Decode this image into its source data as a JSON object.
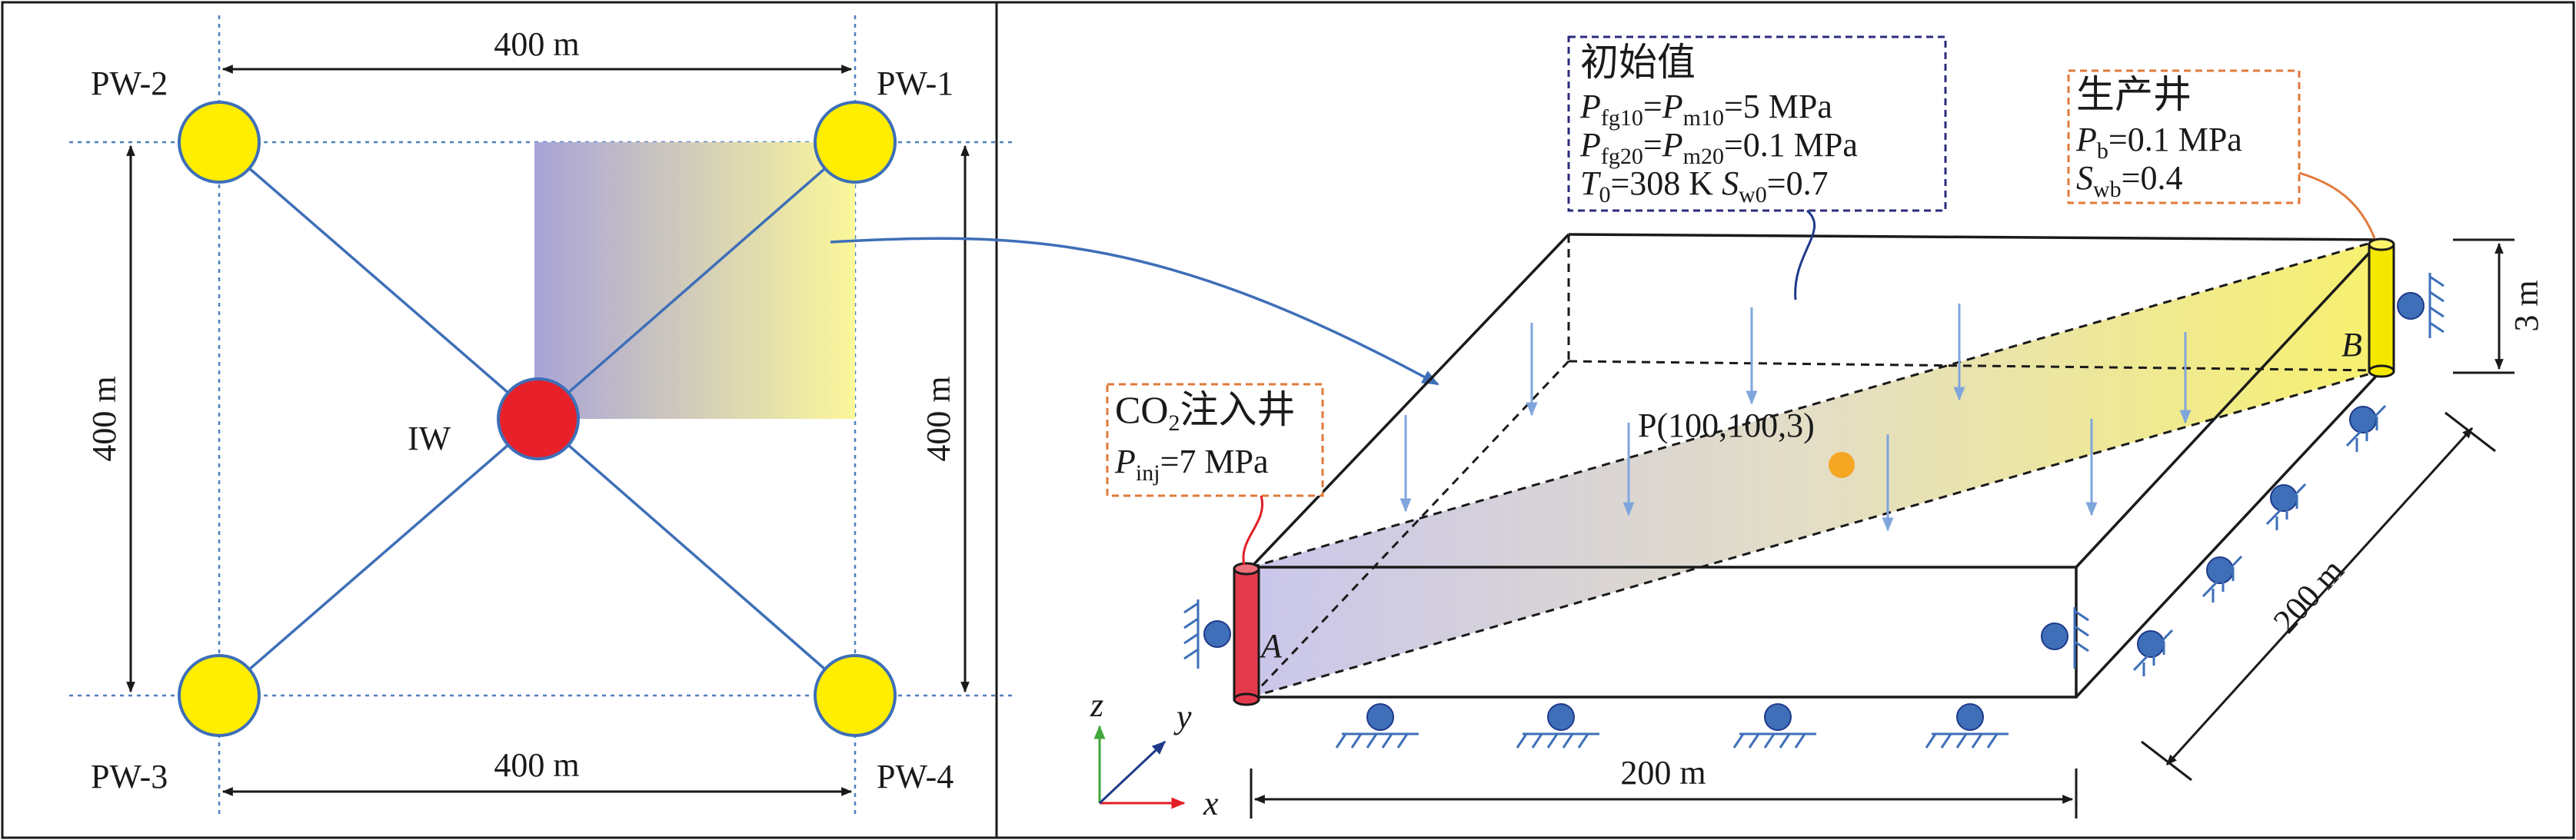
{
  "left_plan": {
    "wells": {
      "pw1": "PW-1",
      "pw2": "PW-2",
      "pw3": "PW-3",
      "pw4": "PW-4",
      "iw": "IW"
    },
    "dimensions": {
      "top": "400 m",
      "bottom": "400 m",
      "left": "400 m",
      "right": "400 m"
    }
  },
  "model_3d": {
    "initial_box": {
      "title": "初始值",
      "line1": {
        "p1": "P",
        "s1": "fg10",
        "eq1": "=",
        "p2": "P",
        "s2": "m10",
        "tail": "=5 MPa"
      },
      "line2": {
        "p1": "P",
        "s1": "fg20",
        "eq1": "=",
        "p2": "P",
        "s2": "m20",
        "tail": "=0.1 MPa"
      },
      "line3": {
        "t": "T",
        "ts": "0",
        "tv": "=308 K ",
        "s": "S",
        "ss": "w0",
        "sv": "=0.7"
      }
    },
    "production_box": {
      "title": "生产井",
      "line1": {
        "p": "P",
        "s": "b",
        "v": "=0.1 MPa"
      },
      "line2": {
        "p": "S",
        "s": "wb",
        "v": "=0.4"
      }
    },
    "injection_box": {
      "title_main": "CO",
      "title_sub": "2",
      "title_tail": "注入井",
      "line1": {
        "p": "P",
        "s": "inj",
        "v": "=7 MPa"
      }
    },
    "point_label": "P(100,100,3)",
    "label_a": "A",
    "label_b": "B",
    "dim_height": "3 m",
    "dim_width": "200 m",
    "dim_depth": "200 m",
    "axes": {
      "x": "x",
      "y": "y",
      "z": "z"
    }
  },
  "colors": {
    "well_yellow": "#ffee00",
    "injector_red": "#e8202a",
    "line_blue": "#3e6fb8",
    "dash_blue": "#4f7fc0",
    "box_dash_navy": "#2b2c7c",
    "box_dash_orange": "#e07a3a",
    "point_orange": "#f5a623",
    "well_tube_yellow": "#f5e800",
    "well_tube_red": "#e43a4d"
  }
}
